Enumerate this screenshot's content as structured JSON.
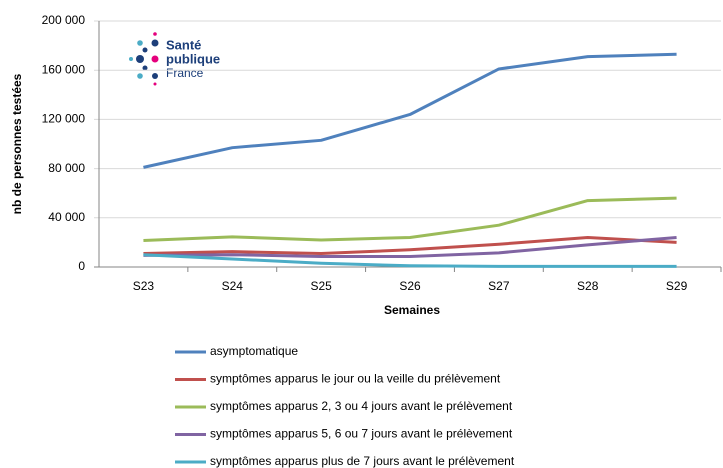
{
  "chart_data": {
    "type": "line",
    "logo": {
      "line1": "Santé",
      "line2": "publique",
      "line3": "France"
    },
    "ylabel": "nb de personnes testées",
    "xlabel": "Semaines",
    "categories": [
      "S23",
      "S24",
      "S25",
      "S26",
      "S27",
      "S28",
      "S29"
    ],
    "series": [
      {
        "name": "asymptomatique",
        "color": "#4f81bd",
        "values": [
          81000,
          97000,
          103000,
          124000,
          161000,
          171000,
          173000
        ]
      },
      {
        "name": "symptômes apparus le jour ou la veille du prélèvement",
        "color": "#c0504d",
        "values": [
          11000,
          12500,
          11000,
          14000,
          18500,
          24000,
          20000
        ]
      },
      {
        "name": "symptômes apparus 2, 3 ou 4 jours avant le prélèvement",
        "color": "#9bbb59",
        "values": [
          21500,
          24500,
          22000,
          24000,
          34000,
          54000,
          56000
        ]
      },
      {
        "name": "symptômes apparus 5, 6 ou 7 jours avant le prélèvement",
        "color": "#8064a2",
        "values": [
          9500,
          10000,
          8500,
          8500,
          11500,
          18000,
          24000
        ]
      },
      {
        "name": "symptômes apparus plus de 7 jours avant le prélèvement",
        "color": "#4bacc6",
        "values": [
          10000,
          6500,
          3000,
          1000,
          500,
          500,
          500
        ]
      }
    ],
    "ylim": [
      0,
      200000
    ],
    "yticks": [
      0,
      {
        "value": 40000,
        "label": "40 000"
      },
      {
        "value": 80000,
        "label": "80 000"
      },
      {
        "value": 120000,
        "label": "120 000"
      },
      {
        "value": 160000,
        "label": "160 000"
      },
      {
        "value": 200000,
        "label": "200 000"
      }
    ],
    "grid": true,
    "legend": "bottom"
  }
}
